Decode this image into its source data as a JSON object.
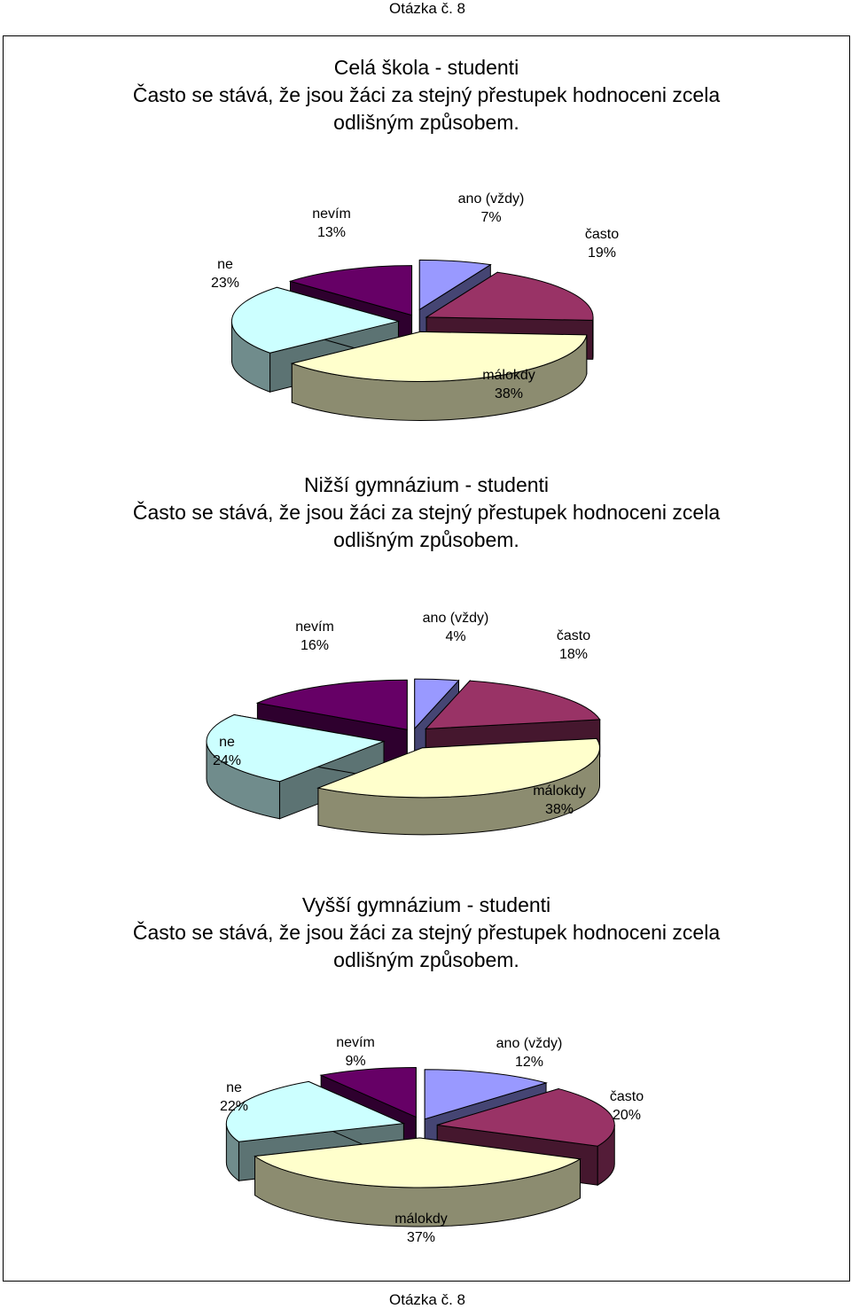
{
  "header": "Otázka č. 8",
  "footer": "Otázka č. 8",
  "chart_data": [
    {
      "type": "pie",
      "style": "3d-exploded",
      "title": [
        "Celá škola - studenti",
        "Často se stává, že jsou žáci za stejný přestupek hodnoceni zcela",
        "odlišným způsobem."
      ],
      "categories": [
        "ano (vždy)",
        "často",
        "málokdy",
        "ne",
        "nevím"
      ],
      "values": [
        7,
        19,
        38,
        23,
        13
      ],
      "labels": [
        "7%",
        "19%",
        "38%",
        "23%",
        "13%"
      ],
      "colors": [
        "#9999ff",
        "#993366",
        "#ffffcc",
        "#ccffff",
        "#660066"
      ]
    },
    {
      "type": "pie",
      "style": "3d-exploded",
      "title": [
        "Nižší gymnázium - studenti",
        "Často se stává, že jsou žáci za stejný přestupek hodnoceni zcela",
        "odlišným způsobem."
      ],
      "categories": [
        "ano (vždy)",
        "často",
        "málokdy",
        "ne",
        "nevím"
      ],
      "values": [
        4,
        18,
        38,
        24,
        16
      ],
      "labels": [
        "4%",
        "18%",
        "38%",
        "24%",
        "16%"
      ],
      "colors": [
        "#9999ff",
        "#993366",
        "#ffffcc",
        "#ccffff",
        "#660066"
      ]
    },
    {
      "type": "pie",
      "style": "3d-exploded",
      "title": [
        "Vyšší gymnázium - studenti",
        "Často se stává, že jsou žáci za stejný přestupek hodnoceni zcela",
        "odlišným způsobem."
      ],
      "categories": [
        "ano (vždy)",
        "často",
        "málokdy",
        "ne",
        "nevím"
      ],
      "values": [
        12,
        20,
        37,
        22,
        9
      ],
      "labels": [
        "12%",
        "20%",
        "37%",
        "22%",
        "9%"
      ],
      "colors": [
        "#9999ff",
        "#993366",
        "#ffffcc",
        "#ccffff",
        "#660066"
      ]
    }
  ]
}
